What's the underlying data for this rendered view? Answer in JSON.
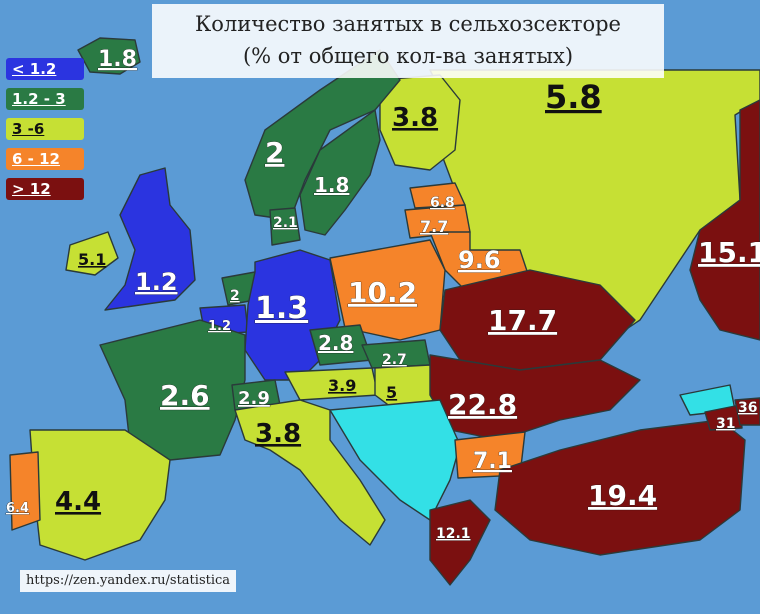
{
  "title": {
    "line1": "Количество занятых в сельхозсекторе",
    "line2": "(% от общего кол-ва занятых)"
  },
  "legend": [
    {
      "label": "< 1.2",
      "color": "#2b34e0",
      "text": "#ffffff"
    },
    {
      "label": "1.2 - 3",
      "color": "#2a7a44",
      "text": "#ffffff"
    },
    {
      "label": "3 -6",
      "color": "#c6e034",
      "text": "#111111"
    },
    {
      "label": "6 - 12",
      "color": "#f5842a",
      "text": "#ffffff"
    },
    {
      "label": "> 12",
      "color": "#7b1010",
      "text": "#ffffff"
    }
  ],
  "colors": {
    "sea": "#5b9bd5",
    "blue": "#2b34e0",
    "green": "#2a7a44",
    "lime": "#c6e034",
    "orange": "#f5842a",
    "darkred": "#7b1010",
    "cyan": "#33e0e6"
  },
  "countries": {
    "iceland": "1.8",
    "norway": "2",
    "sweden": "1.8",
    "finland": "3.8",
    "russia": "5.8",
    "uk": "1.2",
    "ireland": "5.1",
    "denmark": "2.1",
    "netherlands": "2",
    "belgium": "1.2",
    "germany": "1.3",
    "poland": "10.2",
    "estonia": "6.8",
    "latvia": "7.7",
    "lithuania": "9.6",
    "belarus": "17.7",
    "ukraine": "22.8",
    "kazakhstan": "15.1",
    "france": "2.6",
    "switzerland": "2.9",
    "austria": "3.9",
    "czechia": "2.8",
    "slovakia": "2.7",
    "hungary": "5",
    "italy": "3.8",
    "spain": "4.4",
    "portugal": "6.4",
    "bulgaria": "7.1",
    "greece": "12.1",
    "turkey": "19.4",
    "georgia": "31",
    "armenia": "36"
  },
  "source": "https://zen.yandex.ru/statistica"
}
